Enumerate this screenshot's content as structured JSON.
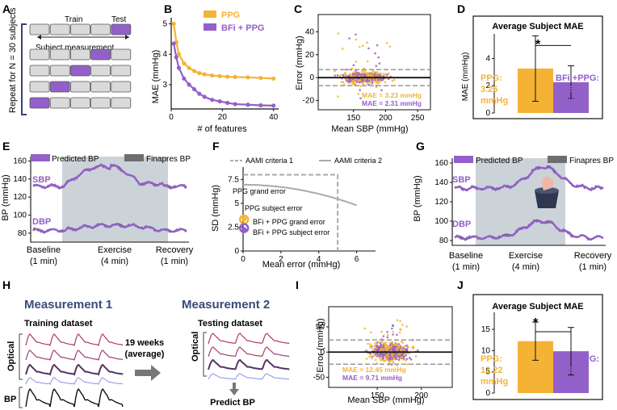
{
  "panel_letters": [
    "A",
    "B",
    "C",
    "D",
    "E",
    "F",
    "G",
    "H",
    "I",
    "J"
  ],
  "panelA": {
    "train_label": "Train",
    "test_label": "Test",
    "subject_measurement_label": "Subject measurement",
    "repeat_label": "Repeat for N = 30 subjects"
  },
  "colors": {
    "ppg": "#F5B335",
    "bfi": "#9360C9",
    "gray_band": "#CBD3D8",
    "finapres": "#6E6E6E"
  },
  "chart_data": [
    {
      "id": "B",
      "type": "line",
      "xlabel": "# of features",
      "ylabel": "MAE (mmHg)",
      "xticks": [
        "0",
        "20",
        "40"
      ],
      "yticks": [
        "3",
        "4",
        "5"
      ],
      "xlim": [
        0,
        42
      ],
      "ylim": [
        2.2,
        5.2
      ],
      "legend": [
        "PPG",
        "BFi + PPG"
      ],
      "series": [
        {
          "name": "PPG",
          "x": [
            1,
            2,
            3,
            5,
            7,
            9,
            11,
            13,
            16,
            19,
            22,
            25,
            30,
            35,
            40
          ],
          "values": [
            5.0,
            4.4,
            4.0,
            3.7,
            3.55,
            3.45,
            3.38,
            3.34,
            3.3,
            3.28,
            3.26,
            3.25,
            3.24,
            3.22,
            3.2
          ]
        },
        {
          "name": "BFi + PPG",
          "x": [
            1,
            2,
            3,
            5,
            7,
            9,
            11,
            13,
            16,
            19,
            22,
            25,
            30,
            35,
            40
          ],
          "values": [
            4.35,
            3.9,
            3.55,
            3.2,
            3.0,
            2.85,
            2.7,
            2.6,
            2.5,
            2.45,
            2.4,
            2.36,
            2.34,
            2.32,
            2.31
          ]
        }
      ]
    },
    {
      "id": "C",
      "type": "scatter",
      "xlabel": "Mean SBP (mmHg)",
      "ylabel": "Error (mmHg)",
      "xticks": [
        "150",
        "200",
        "250"
      ],
      "yticks": [
        "-20",
        "0",
        "20",
        "40"
      ],
      "xlim": [
        95,
        270
      ],
      "ylim": [
        -28,
        55
      ],
      "annotations": [
        "MAE = 3.23 mmHg",
        "MAE = 2.31 mmHg"
      ]
    },
    {
      "id": "D",
      "type": "bar",
      "title": "Average Subject MAE",
      "ylabel": "MAE (mmHg)",
      "yticks": [
        "0",
        "2",
        "4"
      ],
      "ylim": [
        0,
        5.8
      ],
      "categories": [
        "PPG",
        "BFi + PPG"
      ],
      "values": [
        3.26,
        2.26
      ],
      "errors": [
        2.4,
        1.2
      ],
      "labels": [
        "PPG:",
        "3.26",
        "mmHg",
        "BFi +PPG:",
        "2.26",
        "mmHg"
      ],
      "significance": "*"
    },
    {
      "id": "E",
      "type": "line",
      "ylabel": "BP (mmHg)",
      "yticks": [
        "80",
        "100",
        "120",
        "140",
        "160"
      ],
      "ylim": [
        70,
        165
      ],
      "legend": [
        "Predicted BP",
        "Finapres BP"
      ],
      "series_labels": [
        "SBP",
        "DBP"
      ],
      "phases": [
        "Baseline",
        "(1 min)",
        "Exercise",
        "(4 min)",
        "Recovery",
        "(1 min)"
      ]
    },
    {
      "id": "F",
      "type": "scatter",
      "xlabel": "Mean error (mmHg)",
      "ylabel": "SD (mmHg)",
      "xticks": [
        "0",
        "2",
        "4",
        "6"
      ],
      "yticks": [
        "0",
        "2.5",
        "5",
        "7.5"
      ],
      "xlim": [
        0,
        7
      ],
      "ylim": [
        0,
        8.8
      ],
      "legend": [
        "AAMI criteria 1",
        "AAMI criteria 2"
      ],
      "annotations": [
        "PPG grand error",
        "PPG subject error",
        "BFi + PPG grand error",
        "BFi + PPG subject error"
      ]
    },
    {
      "id": "G",
      "type": "line",
      "ylabel": "BP (mmHg)",
      "yticks": [
        "80",
        "100",
        "120",
        "140",
        "160"
      ],
      "ylim": [
        75,
        165
      ],
      "legend": [
        "Predicted BP",
        "Finapres BP"
      ],
      "series_labels": [
        "SBP",
        "DBP"
      ],
      "phases": [
        "Baseline",
        "(1 min)",
        "Exercise",
        "(4 min)",
        "Recovery",
        "(1 min)"
      ]
    },
    {
      "id": "I",
      "type": "scatter",
      "xlabel": "Mean SBP (mmHg)",
      "ylabel": "Error (mmHg)",
      "xticks": [
        "150",
        "200"
      ],
      "yticks": [
        "-50",
        "0",
        "50"
      ],
      "xlim": [
        95,
        235
      ],
      "ylim": [
        -70,
        90
      ],
      "annotations": [
        "MAE = 12.45 mmHg",
        "MAE = 9.71 mmHg"
      ]
    },
    {
      "id": "J",
      "type": "bar",
      "title": "Average Subject MAE",
      "yticks": [
        "0",
        "5",
        "10",
        "15"
      ],
      "ylim": [
        0,
        19
      ],
      "categories": [
        "PPG",
        "BFi + PPG"
      ],
      "values": [
        12.22,
        9.85
      ],
      "errors": [
        4.5,
        5.6
      ],
      "labels": [
        "PPG:",
        "12.22",
        "mmHg",
        "BFi +PPG:",
        "9.85",
        "mmHg"
      ],
      "significance": "*"
    }
  ],
  "panelH": {
    "measurement1": "Measurement 1",
    "measurement2": "Measurement 2",
    "training_dataset": "Training dataset",
    "testing_dataset": "Testing dataset",
    "optical": "Optical",
    "bp": "BP",
    "weeks": "19 weeks",
    "average": "(average)",
    "predict": "Predict BP"
  }
}
